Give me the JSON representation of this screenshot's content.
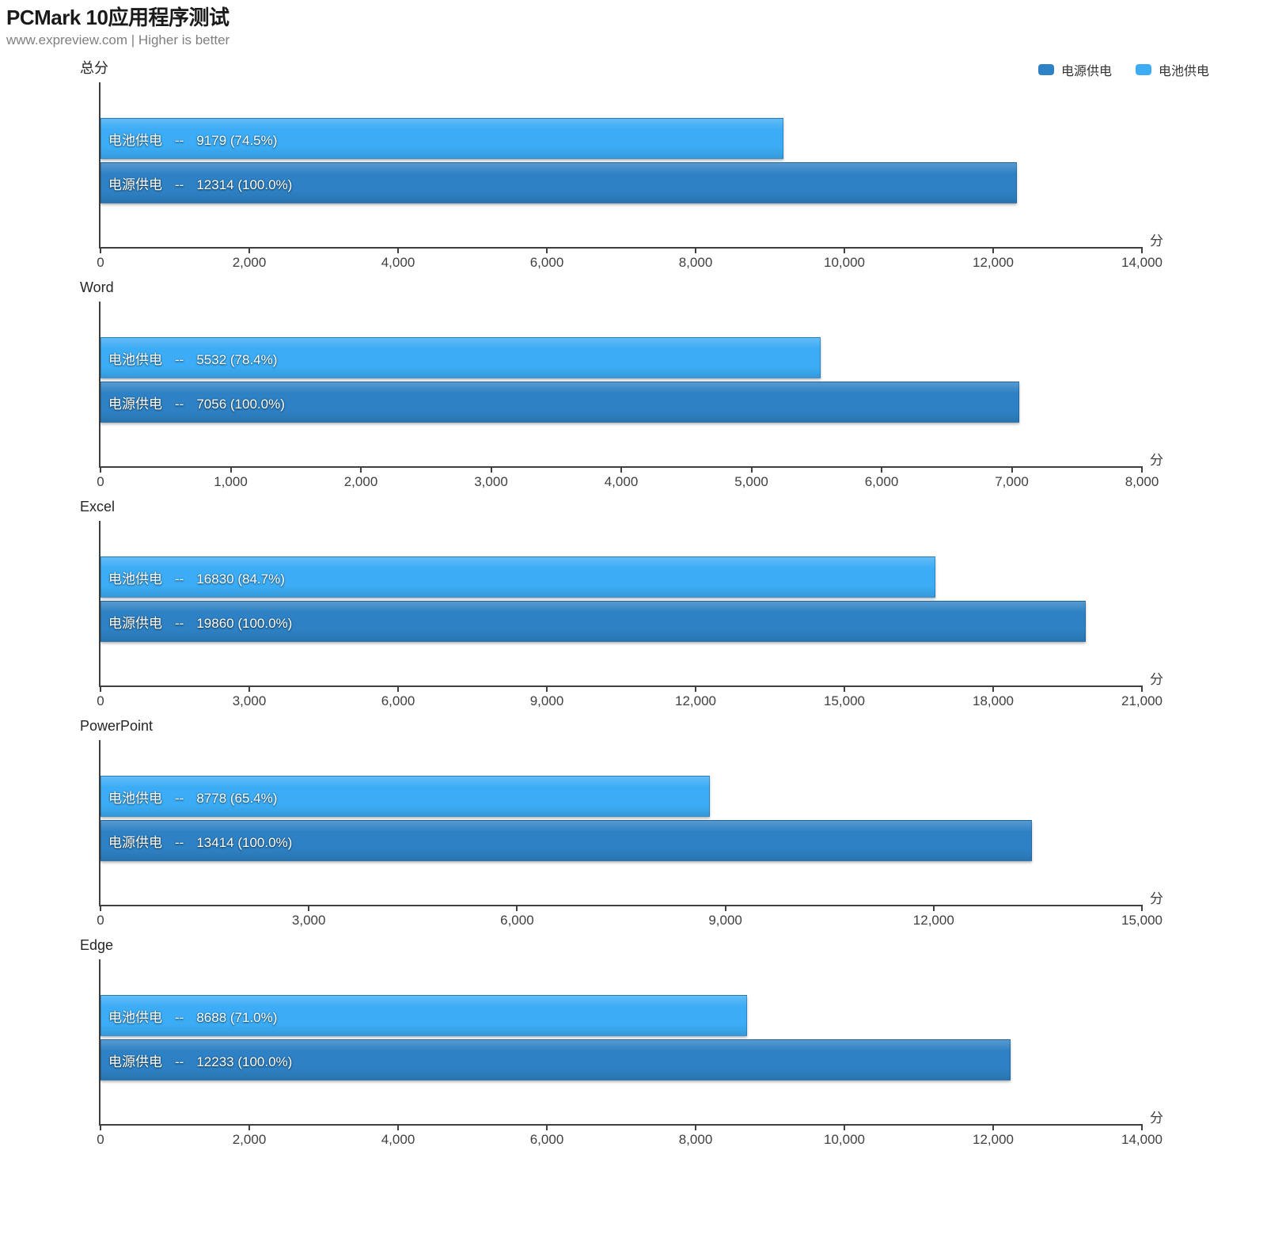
{
  "header": {
    "title": "PCMark 10应用程序测试",
    "subtitle": "www.expreview.com | Higher is better"
  },
  "legend": [
    {
      "label": "电源供电",
      "color": "#2D81C4"
    },
    {
      "label": "电池供电",
      "color": "#3BACF5"
    }
  ],
  "colors": {
    "ac_power": "#2D81C4",
    "battery_power": "#3BACF5",
    "axis": "#3f3f3f"
  },
  "unit_label": "分",
  "chart_data": [
    {
      "type": "bar",
      "title": "总分",
      "series": [
        {
          "name": "电池供电",
          "sep": "--",
          "value": 9179,
          "percent": "74.5%",
          "score_text": "9179 (74.5%)",
          "color": "#3BACF5"
        },
        {
          "name": "电源供电",
          "sep": "--",
          "value": 12314,
          "percent": "100.0%",
          "score_text": "12314 (100.0%)",
          "color": "#2D81C4"
        }
      ],
      "xlim": [
        0,
        14000
      ],
      "tick_values": [
        0,
        2000,
        4000,
        6000,
        8000,
        10000,
        12000,
        14000
      ],
      "tick_labels": [
        "0",
        "2,000",
        "4,000",
        "6,000",
        "8,000",
        "10,000",
        "12,000",
        "14,000"
      ],
      "unit": "分"
    },
    {
      "type": "bar",
      "title": "Word",
      "series": [
        {
          "name": "电池供电",
          "sep": "--",
          "value": 5532,
          "percent": "78.4%",
          "score_text": "5532 (78.4%)",
          "color": "#3BACF5"
        },
        {
          "name": "电源供电",
          "sep": "--",
          "value": 7056,
          "percent": "100.0%",
          "score_text": "7056 (100.0%)",
          "color": "#2D81C4"
        }
      ],
      "xlim": [
        0,
        8000
      ],
      "tick_values": [
        0,
        1000,
        2000,
        3000,
        4000,
        5000,
        6000,
        7000,
        8000
      ],
      "tick_labels": [
        "0",
        "1,000",
        "2,000",
        "3,000",
        "4,000",
        "5,000",
        "6,000",
        "7,000",
        "8,000"
      ],
      "unit": "分"
    },
    {
      "type": "bar",
      "title": "Excel",
      "series": [
        {
          "name": "电池供电",
          "sep": "--",
          "value": 16830,
          "percent": "84.7%",
          "score_text": "16830 (84.7%)",
          "color": "#3BACF5"
        },
        {
          "name": "电源供电",
          "sep": "--",
          "value": 19860,
          "percent": "100.0%",
          "score_text": "19860 (100.0%)",
          "color": "#2D81C4"
        }
      ],
      "xlim": [
        0,
        21000
      ],
      "tick_values": [
        0,
        3000,
        6000,
        9000,
        12000,
        15000,
        18000,
        21000
      ],
      "tick_labels": [
        "0",
        "3,000",
        "6,000",
        "9,000",
        "12,000",
        "15,000",
        "18,000",
        "21,000"
      ],
      "unit": "分"
    },
    {
      "type": "bar",
      "title": "PowerPoint",
      "series": [
        {
          "name": "电池供电",
          "sep": "--",
          "value": 8778,
          "percent": "65.4%",
          "score_text": "8778 (65.4%)",
          "color": "#3BACF5"
        },
        {
          "name": "电源供电",
          "sep": "--",
          "value": 13414,
          "percent": "100.0%",
          "score_text": "13414 (100.0%)",
          "color": "#2D81C4"
        }
      ],
      "xlim": [
        0,
        15000
      ],
      "tick_values": [
        0,
        3000,
        6000,
        9000,
        12000,
        15000
      ],
      "tick_labels": [
        "0",
        "3,000",
        "6,000",
        "9,000",
        "12,000",
        "15,000"
      ],
      "unit": "分"
    },
    {
      "type": "bar",
      "title": "Edge",
      "series": [
        {
          "name": "电池供电",
          "sep": "--",
          "value": 8688,
          "percent": "71.0%",
          "score_text": "8688 (71.0%)",
          "color": "#3BACF5"
        },
        {
          "name": "电源供电",
          "sep": "--",
          "value": 12233,
          "percent": "100.0%",
          "score_text": "12233 (100.0%)",
          "color": "#2D81C4"
        }
      ],
      "xlim": [
        0,
        14000
      ],
      "tick_values": [
        0,
        2000,
        4000,
        6000,
        8000,
        10000,
        12000,
        14000
      ],
      "tick_labels": [
        "0",
        "2,000",
        "4,000",
        "6,000",
        "8,000",
        "10,000",
        "12,000",
        "14,000"
      ],
      "unit": "分"
    }
  ]
}
